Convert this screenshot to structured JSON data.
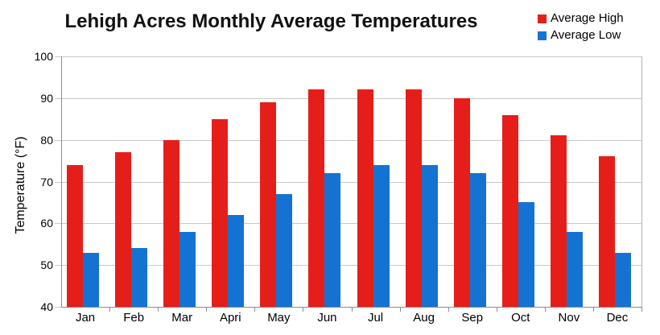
{
  "title": "Lehigh Acres Monthly Average Temperatures",
  "legend": {
    "position": "top-right",
    "items": [
      {
        "label": "Average High",
        "color": "#e61e19"
      },
      {
        "label": "Average Low",
        "color": "#1473d2"
      }
    ]
  },
  "chart_data": {
    "type": "bar",
    "title": "Lehigh Acres Monthly Average Temperatures",
    "xlabel": "",
    "ylabel": "Temperature (°F)",
    "ylim": [
      40,
      100
    ],
    "yticks": [
      40,
      50,
      60,
      70,
      80,
      90,
      100
    ],
    "grid": true,
    "legend_position": "top-right",
    "categories": [
      "Jan",
      "Feb",
      "Mar",
      "Apri",
      "May",
      "Jun",
      "Jul",
      "Aug",
      "Sep",
      "Oct",
      "Nov",
      "Dec"
    ],
    "series": [
      {
        "name": "Average High",
        "color": "#e61e19",
        "values": [
          74,
          77,
          80,
          85,
          89,
          92,
          92,
          92,
          90,
          86,
          81,
          76
        ]
      },
      {
        "name": "Average Low",
        "color": "#1473d2",
        "values": [
          53,
          54,
          58,
          62,
          67,
          72,
          74,
          74,
          72,
          65,
          58,
          53
        ]
      }
    ],
    "colors": {
      "gridline": "#c9c9c9",
      "axis": "#8c8c8c",
      "plot_border": "#b4b4b4",
      "text": "#000000",
      "background": "#ffffff"
    }
  }
}
